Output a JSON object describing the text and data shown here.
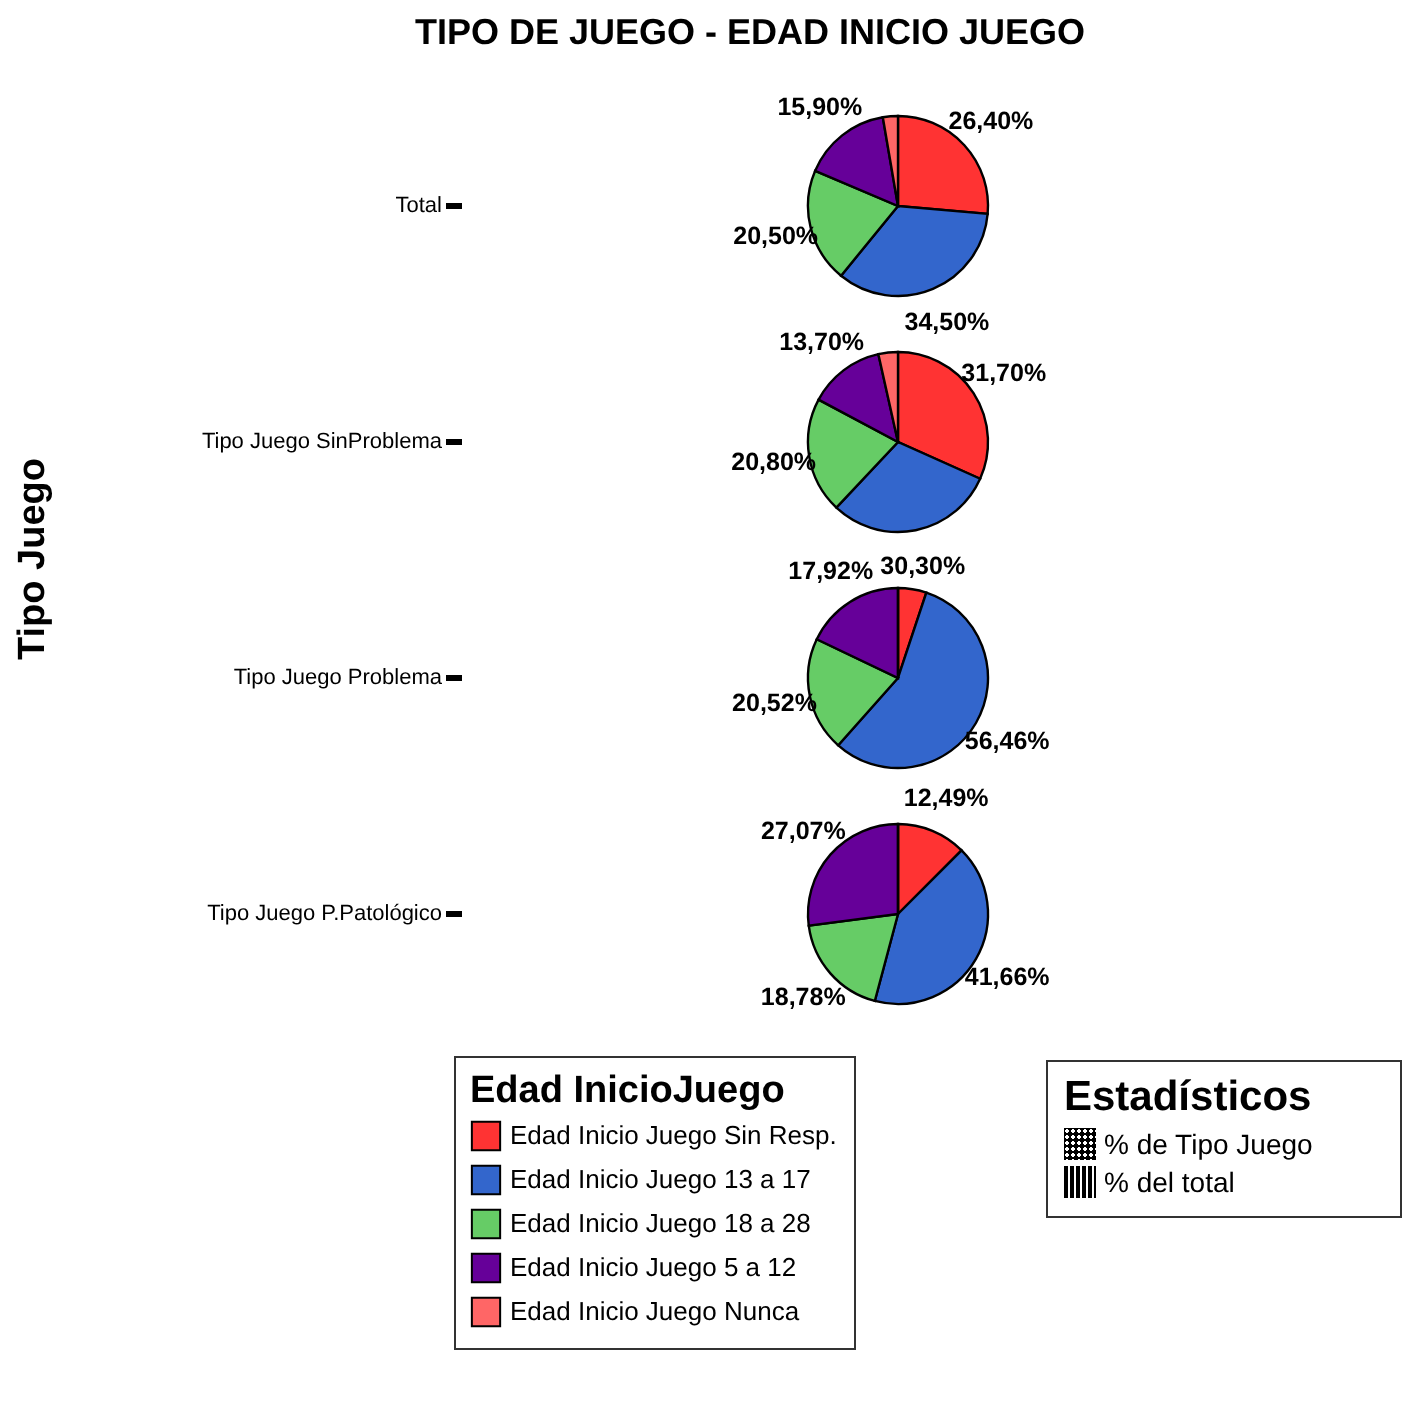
{
  "chart_data": {
    "type": "pie",
    "title": "TIPO DE JUEGO - EDAD INICIO JUEGO",
    "ylabel": "Tipo Juego",
    "legend_title": "Edad InicioJuego",
    "legend": "bottom left",
    "categories": [
      "Edad Inicio Juego Sin Resp.",
      "Edad Inicio Juego 13 a 17",
      "Edad Inicio Juego 18 a 28",
      "Edad Inicio Juego 5 a 12",
      "Edad Inicio Juego Nunca"
    ],
    "colors": [
      "#ff3333",
      "#3366cc",
      "#66cc66",
      "#660099",
      "#ff6666"
    ],
    "series": [
      {
        "name": "Total",
        "values": [
          26.4,
          34.5,
          20.5,
          15.9,
          2.7
        ],
        "value_labels": [
          "26,40%",
          "34,50%",
          "20,50%",
          "15,90%",
          null
        ]
      },
      {
        "name": "Tipo Juego SinProblema",
        "values": [
          31.7,
          30.3,
          20.8,
          13.7,
          3.5
        ],
        "value_labels": [
          "31,70%",
          "30,30%",
          "20,80%",
          "13,70%",
          null
        ]
      },
      {
        "name": "Tipo Juego Problema",
        "values": [
          5.1,
          56.46,
          20.52,
          17.92,
          0
        ],
        "value_labels": [
          null,
          "56,46%",
          "20,52%",
          "17,92%",
          null
        ]
      },
      {
        "name": "Tipo Juego P.Patológico",
        "values": [
          12.49,
          41.66,
          18.78,
          27.07,
          0
        ],
        "value_labels": [
          "12,49%",
          "41,66%",
          "18,78%",
          "27,07%",
          null
        ]
      }
    ],
    "annotations": [
      "Estadísticos",
      "% de Tipo Juego",
      "% del total"
    ]
  }
}
